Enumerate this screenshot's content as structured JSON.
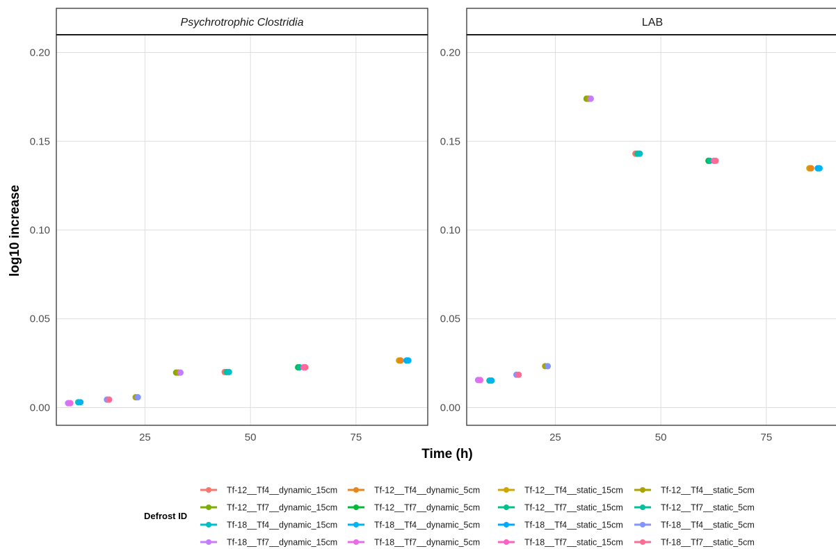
{
  "chart_data": {
    "type": "scatter",
    "xlabel": "Time (h)",
    "ylabel": "log10 increase",
    "xticks": [
      25,
      50,
      75
    ],
    "yticks": [
      0.0,
      0.05,
      0.1,
      0.15,
      0.2
    ],
    "ytick_labels": [
      "0.00",
      "0.05",
      "0.10",
      "0.15",
      "0.20"
    ],
    "xlim": [
      4,
      92
    ],
    "ylim": [
      -0.01,
      0.21
    ],
    "grid": true,
    "legend": {
      "title": "Defrost ID",
      "position": "bottom",
      "entries": [
        {
          "name": "Tf-12__Tf4__dynamic_15cm",
          "color": "#F8766D"
        },
        {
          "name": "Tf-12__Tf7__dynamic_15cm",
          "color": "#7CAE00"
        },
        {
          "name": "Tf-18__Tf4__dynamic_15cm",
          "color": "#00BFC4"
        },
        {
          "name": "Tf-18__Tf7__dynamic_15cm",
          "color": "#C77CFF"
        },
        {
          "name": "Tf-12__Tf4__dynamic_5cm",
          "color": "#E7861B"
        },
        {
          "name": "Tf-12__Tf7__dynamic_5cm",
          "color": "#00BA38"
        },
        {
          "name": "Tf-18__Tf4__dynamic_5cm",
          "color": "#00B4EF"
        },
        {
          "name": "Tf-18__Tf7__dynamic_5cm",
          "color": "#EA6BE8"
        },
        {
          "name": "Tf-12__Tf4__static_15cm",
          "color": "#CFA500"
        },
        {
          "name": "Tf-12__Tf7__static_15cm",
          "color": "#00C08B"
        },
        {
          "name": "Tf-18__Tf4__static_15cm",
          "color": "#00A9FF"
        },
        {
          "name": "Tf-18__Tf7__static_15cm",
          "color": "#FF61C3"
        },
        {
          "name": "Tf-12__Tf4__static_5cm",
          "color": "#ABA300"
        },
        {
          "name": "Tf-12__Tf7__static_5cm",
          "color": "#00C19A"
        },
        {
          "name": "Tf-18__Tf4__static_5cm",
          "color": "#8494FF"
        },
        {
          "name": "Tf-18__Tf7__static_5cm",
          "color": "#FF6C91"
        }
      ]
    },
    "panels": [
      {
        "strip": "Psychrotrophic Clostridia",
        "italic": true,
        "points": [
          {
            "x": 6.8,
            "y": 0.0025,
            "color": "#C77CFF"
          },
          {
            "x": 7.3,
            "y": 0.0025,
            "color": "#EA6BE8"
          },
          {
            "x": 9.2,
            "y": 0.003,
            "color": "#00BFC4"
          },
          {
            "x": 9.7,
            "y": 0.003,
            "color": "#00B4EF"
          },
          {
            "x": 16.0,
            "y": 0.0045,
            "color": "#8494FF"
          },
          {
            "x": 16.5,
            "y": 0.0045,
            "color": "#FF6C91"
          },
          {
            "x": 22.8,
            "y": 0.0058,
            "color": "#ABA300"
          },
          {
            "x": 23.3,
            "y": 0.0058,
            "color": "#8494FF"
          },
          {
            "x": 32.4,
            "y": 0.0197,
            "color": "#7CAE00"
          },
          {
            "x": 32.9,
            "y": 0.0197,
            "color": "#ABA300"
          },
          {
            "x": 33.4,
            "y": 0.0197,
            "color": "#C77CFF"
          },
          {
            "x": 43.9,
            "y": 0.02,
            "color": "#F8766D"
          },
          {
            "x": 44.4,
            "y": 0.02,
            "color": "#00C19A"
          },
          {
            "x": 44.9,
            "y": 0.02,
            "color": "#00BFC4"
          },
          {
            "x": 61.3,
            "y": 0.0227,
            "color": "#00BA38"
          },
          {
            "x": 61.6,
            "y": 0.0227,
            "color": "#00C08B"
          },
          {
            "x": 62.6,
            "y": 0.0227,
            "color": "#FF61C3"
          },
          {
            "x": 63.0,
            "y": 0.0227,
            "color": "#FF6C91"
          },
          {
            "x": 85.2,
            "y": 0.0265,
            "color": "#CFA500"
          },
          {
            "x": 85.6,
            "y": 0.0265,
            "color": "#E7861B"
          },
          {
            "x": 87.0,
            "y": 0.0265,
            "color": "#00A9FF"
          },
          {
            "x": 87.4,
            "y": 0.0265,
            "color": "#00B4EF"
          }
        ]
      },
      {
        "strip": "LAB",
        "italic": false,
        "points": [
          {
            "x": 6.7,
            "y": 0.0155,
            "color": "#C77CFF"
          },
          {
            "x": 7.2,
            "y": 0.0155,
            "color": "#EA6BE8"
          },
          {
            "x": 9.4,
            "y": 0.0152,
            "color": "#00BFC4"
          },
          {
            "x": 9.9,
            "y": 0.0152,
            "color": "#00B4EF"
          },
          {
            "x": 15.8,
            "y": 0.0185,
            "color": "#8494FF"
          },
          {
            "x": 16.3,
            "y": 0.0185,
            "color": "#FF6C91"
          },
          {
            "x": 22.6,
            "y": 0.0233,
            "color": "#ABA300"
          },
          {
            "x": 23.2,
            "y": 0.0233,
            "color": "#8494FF"
          },
          {
            "x": 32.4,
            "y": 0.174,
            "color": "#7CAE00"
          },
          {
            "x": 32.9,
            "y": 0.174,
            "color": "#ABA300"
          },
          {
            "x": 33.4,
            "y": 0.174,
            "color": "#C77CFF"
          },
          {
            "x": 44.0,
            "y": 0.143,
            "color": "#F8766D"
          },
          {
            "x": 44.5,
            "y": 0.143,
            "color": "#00C19A"
          },
          {
            "x": 45.0,
            "y": 0.143,
            "color": "#00BFC4"
          },
          {
            "x": 61.3,
            "y": 0.139,
            "color": "#00BA38"
          },
          {
            "x": 61.6,
            "y": 0.139,
            "color": "#00C08B"
          },
          {
            "x": 62.6,
            "y": 0.139,
            "color": "#FF61C3"
          },
          {
            "x": 63.0,
            "y": 0.139,
            "color": "#FF6C91"
          },
          {
            "x": 85.2,
            "y": 0.1348,
            "color": "#CFA500"
          },
          {
            "x": 85.6,
            "y": 0.1348,
            "color": "#E7861B"
          },
          {
            "x": 87.2,
            "y": 0.1348,
            "color": "#00A9FF"
          },
          {
            "x": 87.6,
            "y": 0.1348,
            "color": "#00B4EF"
          }
        ]
      }
    ]
  }
}
